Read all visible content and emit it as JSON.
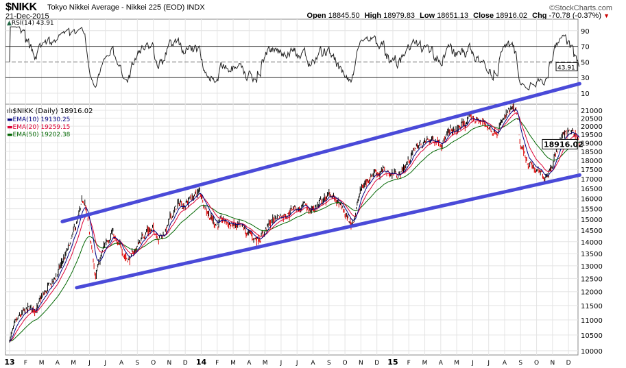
{
  "header": {
    "symbol": "$NIKK",
    "name": "Tokyo Nikkei Average - Nikkei 225 (EOD) INDX",
    "date": "21-Dec-2015",
    "brand": "©StockCharts.com",
    "open_label": "Open",
    "open": "18845.50",
    "high_label": "High",
    "high": "18979.83",
    "low_label": "Low",
    "low": "18651.13",
    "close_label": "Close",
    "close": "18916.02",
    "chg_label": "Chg",
    "chg": "-70.78 (-0.37%)"
  },
  "rsi_legend": "RSI(14) 43.91",
  "price_legend": "$NIKK (Daily) 18916.02",
  "ema_legend": [
    {
      "label": "EMA(10) 19130.25",
      "color": "#000080"
    },
    {
      "label": "EMA(20) 19259.15",
      "color": "#dd0033"
    },
    {
      "label": "EMA(50) 19202.38",
      "color": "#006600"
    }
  ],
  "chart_data": {
    "type": "line",
    "title": "$NIKK Tokyo Nikkei Average - Nikkei 225 (EOD)",
    "price_scale": "log",
    "ylim": [
      9800,
      21300
    ],
    "price_ticks": [
      10000,
      10500,
      11000,
      11500,
      12000,
      12500,
      13000,
      13500,
      14000,
      14500,
      15000,
      15500,
      16000,
      16500,
      17000,
      17500,
      18000,
      18500,
      19000,
      19500,
      20000,
      20500,
      21000
    ],
    "rsi_ticks": [
      10,
      30,
      50,
      70,
      90
    ],
    "rsi_value": "43.91",
    "last_price_label": "18916.02",
    "x_ticks": [
      "13",
      "F",
      "M",
      "A",
      "M",
      "J",
      "J",
      "A",
      "S",
      "O",
      "N",
      "D",
      "14",
      "F",
      "M",
      "A",
      "M",
      "J",
      "J",
      "A",
      "S",
      "O",
      "N",
      "D",
      "15",
      "F",
      "M",
      "A",
      "M",
      "J",
      "J",
      "A",
      "S",
      "O",
      "N",
      "D"
    ],
    "x_unit": "months since Jan 2013",
    "price_path": [
      [
        0,
        10400
      ],
      [
        0.8,
        11100
      ],
      [
        1.8,
        11500
      ],
      [
        2.8,
        12400
      ],
      [
        3.8,
        13800
      ],
      [
        4.7,
        15900
      ],
      [
        5.4,
        12500
      ],
      [
        5.9,
        13700
      ],
      [
        6.4,
        14600
      ],
      [
        6.8,
        13700
      ],
      [
        7.6,
        13300
      ],
      [
        8.6,
        14600
      ],
      [
        9.6,
        14300
      ],
      [
        10.5,
        15600
      ],
      [
        11.9,
        16300
      ],
      [
        12.8,
        14900
      ],
      [
        13.8,
        14800
      ],
      [
        14.6,
        14400
      ],
      [
        15.4,
        14100
      ],
      [
        16.7,
        15100
      ],
      [
        17.8,
        15600
      ],
      [
        18.8,
        15400
      ],
      [
        20.2,
        16200
      ],
      [
        21.4,
        14700
      ],
      [
        22.0,
        16400
      ],
      [
        22.8,
        17500
      ],
      [
        23.6,
        17300
      ],
      [
        24.5,
        17300
      ],
      [
        25.5,
        18800
      ],
      [
        26.9,
        19300
      ],
      [
        27.9,
        19600
      ],
      [
        28.9,
        20500
      ],
      [
        29.6,
        20200
      ],
      [
        30.3,
        19800
      ],
      [
        31.3,
        20700
      ],
      [
        31.7,
        20900
      ],
      [
        32.0,
        18500
      ],
      [
        32.6,
        17800
      ],
      [
        33.4,
        17000
      ],
      [
        33.9,
        17800
      ],
      [
        34.8,
        19800
      ],
      [
        35.2,
        19600
      ],
      [
        35.68,
        18916
      ]
    ],
    "channel_lines": [
      {
        "name": "upper",
        "start": [
          3.3,
          14900
        ],
        "end": [
          35.7,
          22800
        ]
      },
      {
        "name": "lower",
        "start": [
          4.2,
          12150
        ],
        "end": [
          35.7,
          17200
        ]
      }
    ],
    "series": [
      {
        "name": "$NIKK"
      },
      {
        "name": "EMA(10)"
      },
      {
        "name": "EMA(20)"
      },
      {
        "name": "EMA(50)"
      },
      {
        "name": "RSI(14)"
      }
    ]
  }
}
